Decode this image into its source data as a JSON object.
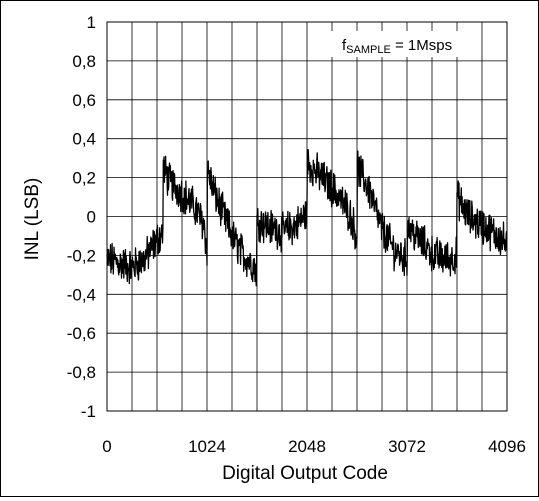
{
  "chart_data": {
    "type": "line",
    "title": "",
    "annotation": "f",
    "annotation_sub": "SAMPLE",
    "annotation_rest": " = 1Msps",
    "xlabel": "Digital Output Code",
    "ylabel": "INL (LSB)",
    "xlim": [
      0,
      4096
    ],
    "ylim": [
      -1,
      1
    ],
    "x_ticks": [
      0,
      1024,
      2048,
      3072,
      4096
    ],
    "x_tick_labels": [
      "0",
      "1024",
      "2048",
      "3072",
      "4096"
    ],
    "x_grid_step": 256,
    "y_ticks": [
      1,
      0.8,
      0.6,
      0.4,
      0.2,
      0,
      -0.2,
      -0.4,
      -0.6,
      -0.8,
      -1
    ],
    "y_tick_labels": [
      "1",
      "0,8",
      "0,6",
      "0,4",
      "0,2",
      "0",
      "-0,2",
      "-0,4",
      "-0,6",
      "-0,8",
      "-1"
    ],
    "grid": true,
    "line_color": "#000000",
    "series": [
      {
        "x": [
          0,
          128,
          256,
          384,
          512,
          575,
          576,
          640,
          768,
          896,
          1000,
          1024,
          1025,
          1100,
          1200,
          1300,
          1400,
          1500,
          1535,
          1536,
          1650,
          1800,
          1950,
          2048,
          2049,
          2200,
          2350,
          2480,
          2560,
          2561,
          2700,
          2800,
          2950,
          3072,
          3073,
          3200,
          3350,
          3500,
          3583,
          3584,
          3700,
          3850,
          4000,
          4095
        ],
        "y": [
          -0.22,
          -0.24,
          -0.26,
          -0.22,
          -0.12,
          -0.08,
          0.25,
          0.18,
          0.12,
          0.05,
          -0.05,
          -0.2,
          0.25,
          0.12,
          0.0,
          -0.12,
          -0.2,
          -0.25,
          -0.28,
          -0.02,
          -0.05,
          -0.08,
          -0.04,
          0.02,
          0.28,
          0.2,
          0.12,
          0.02,
          -0.1,
          0.26,
          0.12,
          -0.05,
          -0.18,
          -0.22,
          -0.05,
          -0.12,
          -0.2,
          -0.22,
          -0.2,
          0.1,
          0.0,
          -0.05,
          -0.1,
          -0.14
        ]
      }
    ]
  }
}
